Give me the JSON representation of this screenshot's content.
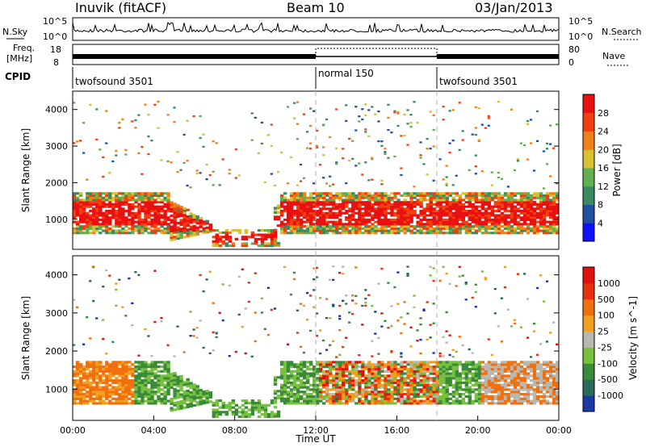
{
  "header": {
    "station": "Inuvik (fitACF)",
    "beam": "Beam 10",
    "date": "03/Jan/2013"
  },
  "sky_panel": {
    "left_label": "N.Sky",
    "right_label": "N.Search",
    "left_ticks": [
      "10^5",
      "10^0"
    ],
    "right_ticks": [
      "10^5",
      "10^0"
    ]
  },
  "freq_panel": {
    "left_label_1": "Freq.",
    "left_label_2": "[MHz]",
    "right_label": "Nave",
    "left_ticks": [
      "18",
      "8"
    ],
    "right_ticks": [
      "80",
      "0"
    ]
  },
  "cpid": {
    "label": "CPID",
    "segments": [
      "twofsound 3501",
      "normal 150",
      "twofsound 3501"
    ]
  },
  "time_axis": {
    "title": "Time UT",
    "ticks": [
      "00:00",
      "04:00",
      "08:00",
      "12:00",
      "16:00",
      "20:00",
      "00:00"
    ]
  },
  "range_axis": {
    "title": "Slant Range [km]",
    "ticks": [
      "1000",
      "2000",
      "3000",
      "4000"
    ]
  },
  "power_colorbar": {
    "title": "Power [dB]",
    "ticks": [
      "4",
      "8",
      "12",
      "16",
      "20",
      "24",
      "28"
    ],
    "colors": [
      "#1010ff",
      "#2050a0",
      "#3a8a60",
      "#60b050",
      "#d8c030",
      "#f08018",
      "#f04010",
      "#e81010"
    ]
  },
  "velocity_colorbar": {
    "title": "Velocity [m s^-1]",
    "ticks": [
      "1000",
      "500",
      "100",
      "25",
      "-25",
      "-100",
      "-500",
      "-1000"
    ],
    "colors": [
      "#1a38a8",
      "#2a6a5a",
      "#3a8a3a",
      "#78c040",
      "#b8b8b0",
      "#f0a020",
      "#f07010",
      "#e83010",
      "#e01010"
    ]
  },
  "chart_data": [
    {
      "type": "heatmap",
      "title": "Power [dB]",
      "xlabel": "Time UT",
      "ylabel": "Slant Range [km]",
      "x_ticks": [
        "00:00",
        "04:00",
        "08:00",
        "12:00",
        "16:00",
        "20:00",
        "00:00"
      ],
      "y_ticks": [
        1000,
        2000,
        3000,
        4000
      ],
      "color_scale": [
        4,
        8,
        12,
        16,
        20,
        24,
        28
      ]
    },
    {
      "type": "heatmap",
      "title": "Velocity [m s^-1]",
      "xlabel": "Time UT",
      "ylabel": "Slant Range [km]",
      "x_ticks": [
        "00:00",
        "04:00",
        "08:00",
        "12:00",
        "16:00",
        "20:00",
        "00:00"
      ],
      "y_ticks": [
        1000,
        2000,
        3000,
        4000
      ],
      "color_scale": [
        1000,
        500,
        100,
        25,
        -25,
        -100,
        -500,
        -1000
      ]
    }
  ]
}
